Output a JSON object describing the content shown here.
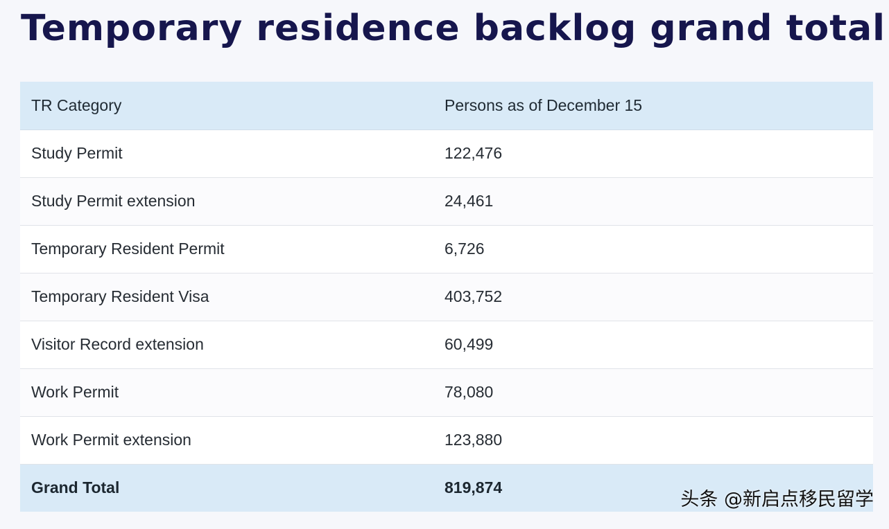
{
  "page": {
    "title": "Temporary residence backlog grand total"
  },
  "table": {
    "headers": [
      "TR Category",
      "Persons as of December 15"
    ],
    "rows": [
      [
        "Study Permit",
        "122,476"
      ],
      [
        "Study Permit extension",
        "24,461"
      ],
      [
        "Temporary Resident Permit",
        "6,726"
      ],
      [
        "Temporary Resident Visa",
        "403,752"
      ],
      [
        "Visitor Record extension",
        "60,499"
      ],
      [
        "Work Permit",
        "78,080"
      ],
      [
        "Work Permit extension",
        "123,880"
      ]
    ],
    "total": [
      "Grand Total",
      "819,874"
    ]
  },
  "watermark": {
    "text": "头条 @新启点移民留学"
  },
  "colors": {
    "title": "#16164d",
    "header_bg": "#d9eaf7",
    "row_bg": "#ffffff",
    "divider": "#e0e3e8"
  }
}
